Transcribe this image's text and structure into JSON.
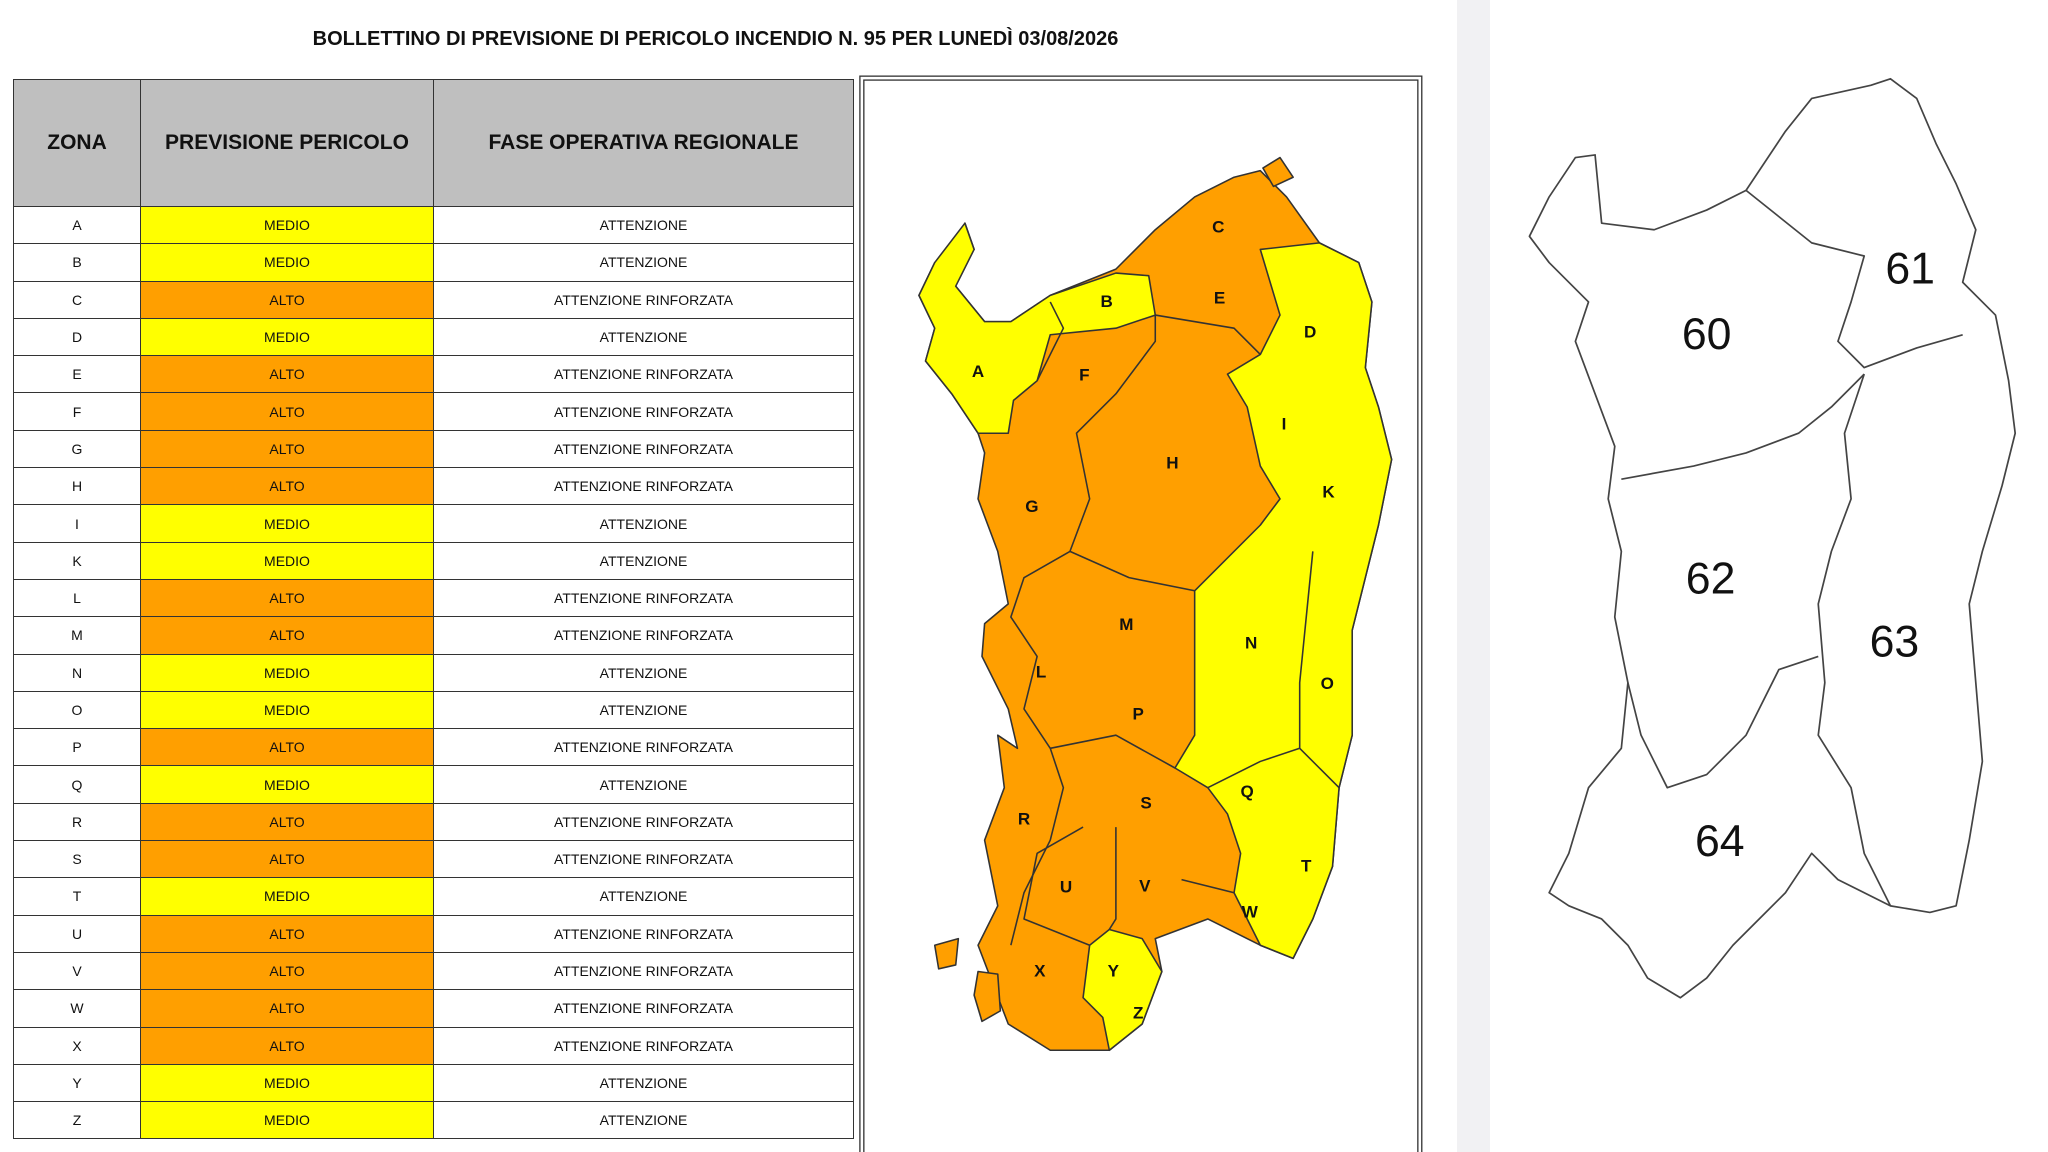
{
  "title": "BOLLETTINO DI PREVISIONE DI PERICOLO INCENDIO N. 95 PER LUNEDÌ 03/08/2026",
  "table": {
    "headers": [
      "ZONA",
      "PREVISIONE PERICOLO",
      "FASE OPERATIVA REGIONALE"
    ],
    "rows": [
      {
        "zona": "A",
        "previsione": "MEDIO",
        "fase": "ATTENZIONE"
      },
      {
        "zona": "B",
        "previsione": "MEDIO",
        "fase": "ATTENZIONE"
      },
      {
        "zona": "C",
        "previsione": "ALTO",
        "fase": "ATTENZIONE RINFORZATA"
      },
      {
        "zona": "D",
        "previsione": "MEDIO",
        "fase": "ATTENZIONE"
      },
      {
        "zona": "E",
        "previsione": "ALTO",
        "fase": "ATTENZIONE RINFORZATA"
      },
      {
        "zona": "F",
        "previsione": "ALTO",
        "fase": "ATTENZIONE RINFORZATA"
      },
      {
        "zona": "G",
        "previsione": "ALTO",
        "fase": "ATTENZIONE RINFORZATA"
      },
      {
        "zona": "H",
        "previsione": "ALTO",
        "fase": "ATTENZIONE RINFORZATA"
      },
      {
        "zona": "I",
        "previsione": "MEDIO",
        "fase": "ATTENZIONE"
      },
      {
        "zona": "K",
        "previsione": "MEDIO",
        "fase": "ATTENZIONE"
      },
      {
        "zona": "L",
        "previsione": "ALTO",
        "fase": "ATTENZIONE RINFORZATA"
      },
      {
        "zona": "M",
        "previsione": "ALTO",
        "fase": "ATTENZIONE RINFORZATA"
      },
      {
        "zona": "N",
        "previsione": "MEDIO",
        "fase": "ATTENZIONE"
      },
      {
        "zona": "O",
        "previsione": "MEDIO",
        "fase": "ATTENZIONE"
      },
      {
        "zona": "P",
        "previsione": "ALTO",
        "fase": "ATTENZIONE RINFORZATA"
      },
      {
        "zona": "Q",
        "previsione": "MEDIO",
        "fase": "ATTENZIONE"
      },
      {
        "zona": "R",
        "previsione": "ALTO",
        "fase": "ATTENZIONE RINFORZATA"
      },
      {
        "zona": "S",
        "previsione": "ALTO",
        "fase": "ATTENZIONE RINFORZATA"
      },
      {
        "zona": "T",
        "previsione": "MEDIO",
        "fase": "ATTENZIONE"
      },
      {
        "zona": "U",
        "previsione": "ALTO",
        "fase": "ATTENZIONE RINFORZATA"
      },
      {
        "zona": "V",
        "previsione": "ALTO",
        "fase": "ATTENZIONE RINFORZATA"
      },
      {
        "zona": "W",
        "previsione": "ALTO",
        "fase": "ATTENZIONE RINFORZATA"
      },
      {
        "zona": "X",
        "previsione": "ALTO",
        "fase": "ATTENZIONE RINFORZATA"
      },
      {
        "zona": "Y",
        "previsione": "MEDIO",
        "fase": "ATTENZIONE"
      },
      {
        "zona": "Z",
        "previsione": "MEDIO",
        "fase": "ATTENZIONE"
      }
    ]
  },
  "right_map": {
    "labels": [
      "60",
      "61",
      "62",
      "63",
      "64"
    ]
  }
}
